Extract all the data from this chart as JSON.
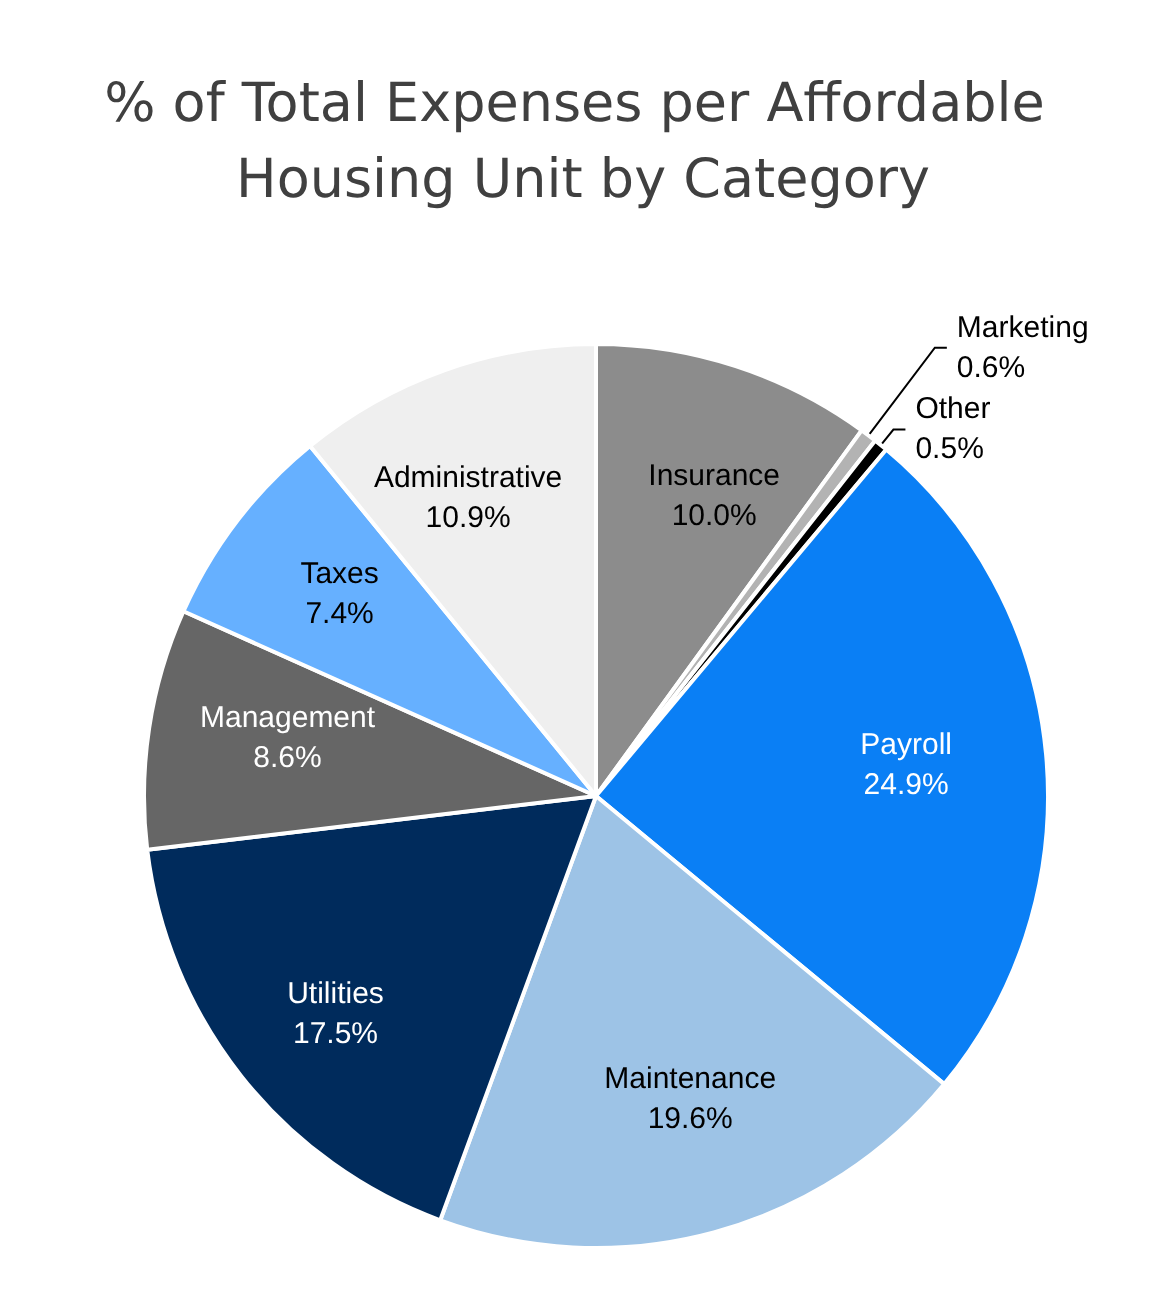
{
  "chart_data": {
    "type": "pie",
    "title": "% of Total Expenses per Affordable Housing Unit by Category",
    "categories": [
      "Insurance",
      "Marketing",
      "Other",
      "Payroll",
      "Maintenance",
      "Utilities",
      "Management",
      "Taxes",
      "Administrative"
    ],
    "values": [
      10.0,
      0.6,
      0.5,
      24.9,
      19.6,
      17.5,
      8.6,
      7.4,
      10.9
    ],
    "value_labels": [
      "10.0%",
      "0.6%",
      "0.5%",
      "24.9%",
      "19.6%",
      "17.5%",
      "8.6%",
      "7.4%",
      "10.9%"
    ],
    "colors": [
      "#8c8c8c",
      "#b3b3b3",
      "#000000",
      "#0a7ff5",
      "#9dc3e6",
      "#002b5c",
      "#666666",
      "#66b0ff",
      "#efefef"
    ],
    "legend": false
  }
}
